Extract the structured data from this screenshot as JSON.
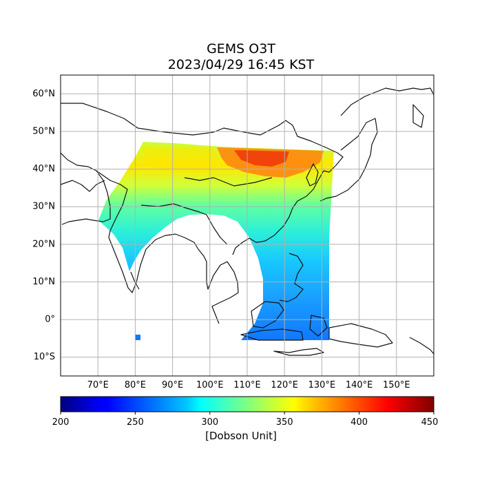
{
  "title": {
    "line1": "GEMS O3T",
    "line2": "2023/04/29 16:45 KST"
  },
  "map": {
    "lon_range": [
      60,
      160
    ],
    "lat_range": [
      -15,
      65
    ],
    "lat_ticks": [
      "60°N",
      "50°N",
      "40°N",
      "30°N",
      "20°N",
      "10°N",
      "0°",
      "10°S"
    ],
    "lon_ticks": [
      "70°E",
      "80°E",
      "90°E",
      "100°E",
      "110°E",
      "120°E",
      "130°E",
      "140°E",
      "150°E"
    ]
  },
  "colorbar": {
    "colormap": "jet",
    "range": [
      200,
      450
    ],
    "ticks": [
      "200",
      "250",
      "300",
      "350",
      "400",
      "450"
    ],
    "unit": "[Dobson Unit]"
  }
}
